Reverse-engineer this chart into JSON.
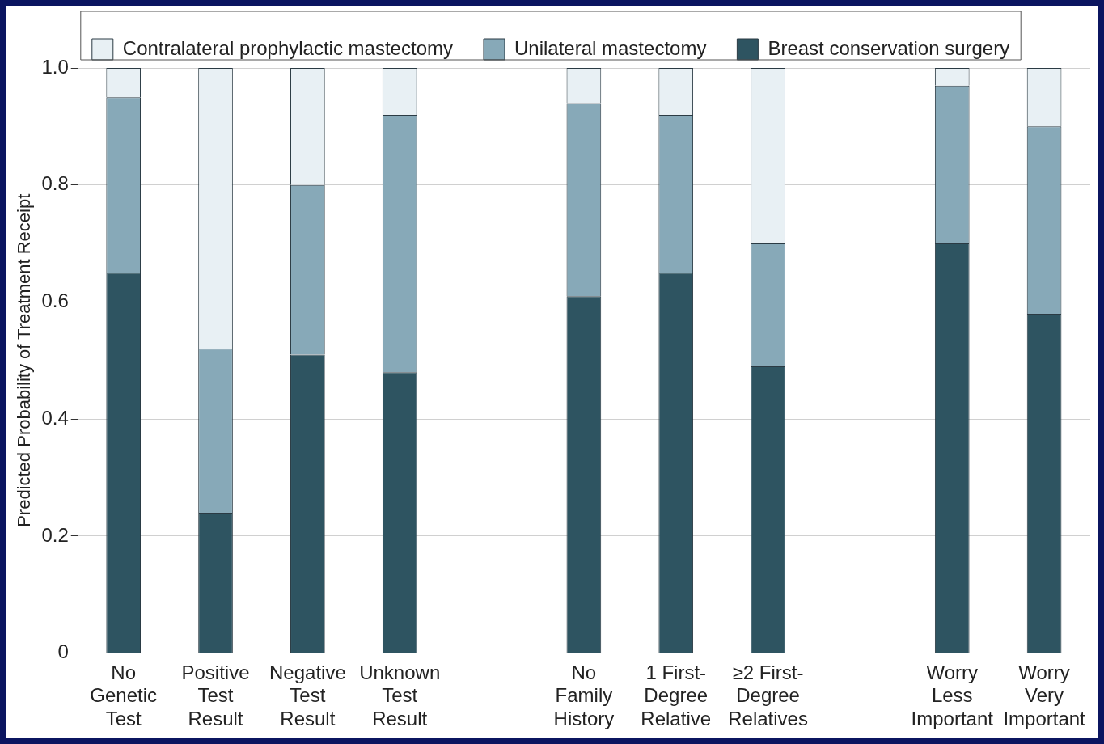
{
  "chart_data": {
    "type": "bar",
    "ylabel": "Predicted Probability of Treatment Receipt",
    "categories": [
      "No\nGenetic\nTest",
      "Positive\nTest\nResult",
      "Negative\nTest\nResult",
      "Unknown\nTest\nResult",
      null,
      "No\nFamily\nHistory",
      "1 First-\nDegree\nRelative",
      "≥2 First-\nDegree\nRelatives",
      null,
      "Worry\nLess\nImportant",
      "Worry\nVery\nImportant"
    ],
    "series": [
      {
        "name": "Breast conservation surgery",
        "color": "#2e5461",
        "values": [
          0.65,
          0.24,
          0.51,
          0.48,
          null,
          0.61,
          0.65,
          0.49,
          null,
          0.7,
          0.58
        ]
      },
      {
        "name": "Unilateral mastectomy",
        "color": "#87a9b8",
        "values": [
          0.3,
          0.28,
          0.29,
          0.44,
          null,
          0.33,
          0.27,
          0.21,
          null,
          0.27,
          0.32
        ]
      },
      {
        "name": "Contralateral prophylactic mastectomy",
        "color": "#e8f0f4",
        "values": [
          0.05,
          0.48,
          0.2,
          0.08,
          null,
          0.06,
          0.08,
          0.3,
          null,
          0.03,
          0.1
        ]
      }
    ],
    "stacked": true,
    "ylim": [
      0,
      1
    ],
    "yticks": [
      0,
      {
        "value": 0.2,
        "label": "0.2"
      },
      {
        "value": 0.4,
        "label": "0.4"
      },
      {
        "value": 0.6,
        "label": "0.6"
      },
      {
        "value": 0.8,
        "label": "0.8"
      },
      {
        "value": 1,
        "label": "1.0"
      }
    ],
    "grid": "y",
    "legend": "top"
  }
}
